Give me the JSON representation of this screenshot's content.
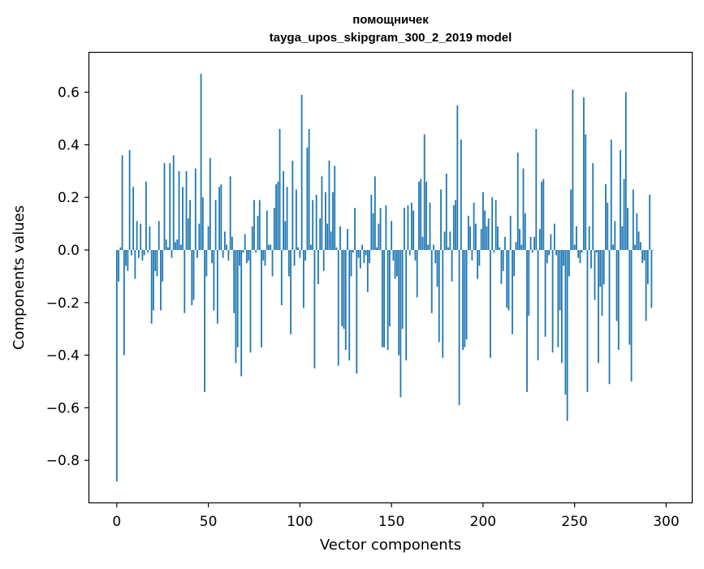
{
  "chart_data": {
    "type": "bar",
    "title": "помощничек",
    "subtitle": "tayga_upos_skipgram_300_2_2019 model",
    "xlabel": "Vector components",
    "ylabel": "Components values",
    "xlim": [
      -15,
      314
    ],
    "ylim": [
      -0.96,
      0.75
    ],
    "xticks": [
      0,
      50,
      100,
      150,
      200,
      250,
      300
    ],
    "xtick_labels": [
      "0",
      "50",
      "100",
      "150",
      "200",
      "250",
      "300"
    ],
    "yticks": [
      -0.8,
      -0.6,
      -0.4,
      -0.2,
      0.0,
      0.2,
      0.4,
      0.6
    ],
    "ytick_labels": [
      "−0.8",
      "−0.6",
      "−0.4",
      "−0.2",
      "0.0",
      "0.2",
      "0.4",
      "0.6"
    ],
    "grid": false,
    "bar_color": "#1f77b4",
    "values": [
      -0.88,
      -0.12,
      0.01,
      0.36,
      -0.4,
      -0.06,
      -0.08,
      0.38,
      -0.02,
      0.24,
      -0.11,
      0.11,
      -0.03,
      0.1,
      -0.04,
      -0.02,
      0.26,
      -0.01,
      0.09,
      -0.28,
      -0.23,
      -0.08,
      -0.1,
      0.11,
      -0.23,
      -0.12,
      0.33,
      0.04,
      0.01,
      0.33,
      -0.03,
      0.36,
      0.03,
      0.04,
      0.3,
      0.02,
      0.24,
      -0.24,
      0.3,
      0.12,
      0.19,
      -0.21,
      -0.19,
      0.31,
      -0.03,
      0.1,
      0.67,
      0.2,
      -0.54,
      -0.1,
      0.09,
      0.35,
      -0.05,
      -0.23,
      0.19,
      -0.28,
      0.24,
      0.25,
      -0.03,
      0.07,
      0.02,
      -0.04,
      0.28,
      0.05,
      -0.24,
      -0.43,
      -0.37,
      -0.06,
      -0.48,
      -0.01,
      0.06,
      -0.05,
      -0.04,
      -0.39,
      0.09,
      0.19,
      -0.01,
      0.13,
      0.19,
      -0.37,
      -0.04,
      -0.06,
      0.15,
      0.02,
      0.02,
      -0.1,
      0.16,
      0.25,
      0.26,
      0.46,
      -0.21,
      0.3,
      0.11,
      0.24,
      -0.1,
      -0.32,
      0.34,
      -0.06,
      0.23,
      0.01,
      -0.03,
      0.59,
      -0.22,
      -0.04,
      0.39,
      0.46,
      0.02,
      0.19,
      -0.45,
      0.21,
      -0.13,
      0.12,
      0.28,
      -0.08,
      0.22,
      0.1,
      0.34,
      0.07,
      0.22,
      0.32,
      0.01,
      -0.44,
      0.09,
      -0.29,
      -0.3,
      -0.38,
      0.08,
      -0.42,
      -0.1,
      -0.01,
      0.16,
      -0.47,
      -0.03,
      -0.07,
      0.02,
      -0.05,
      -0.02,
      -0.16,
      -0.05,
      0.21,
      0.14,
      0.28,
      0.01,
      0.1,
      0.16,
      -0.37,
      -0.37,
      0.17,
      -0.38,
      -0.29,
      0.11,
      -0.04,
      -0.11,
      -0.1,
      -0.4,
      -0.56,
      -0.3,
      0.16,
      -0.42,
      0.17,
      -0.02,
      0.18,
      0.15,
      -0.04,
      -0.18,
      0.26,
      0.27,
      0.05,
      0.44,
      0.26,
      0.02,
      0.18,
      -0.24,
      0.02,
      -0.05,
      -0.14,
      -0.35,
      0.23,
      -0.41,
      0.07,
      0.29,
      0.01,
      0.07,
      -0.12,
      0.17,
      0.19,
      0.55,
      -0.59,
      0.42,
      -0.38,
      -0.37,
      -0.34,
      0.13,
      0.09,
      -0.04,
      0.18,
      0.1,
      -0.11,
      -0.06,
      0.08,
      0.22,
      0.15,
      0.09,
      0.12,
      -0.41,
      0.2,
      -0.01,
      0.19,
      0.09,
      0.01,
      -0.13,
      -0.08,
      0.05,
      -0.22,
      -0.23,
      0.13,
      -0.32,
      -0.1,
      0.03,
      0.37,
      0.08,
      0.02,
      0.31,
      0.14,
      -0.54,
      -0.25,
      0.05,
      -0.01,
      0.05,
      0.46,
      -0.42,
      0.08,
      0.26,
      0.27,
      -0.33,
      -0.05,
      -0.02,
      0.06,
      -0.39,
      0.1,
      -0.02,
      -0.37,
      -0.23,
      -0.43,
      -0.06,
      -0.55,
      -0.65,
      -0.1,
      0.23,
      0.61,
      0.02,
      0.09,
      -0.03,
      -0.05,
      -0.01,
      0.58,
      0.44,
      -0.54,
      0.09,
      -0.07,
      0.33,
      -0.19,
      -0.01,
      -0.43,
      -0.14,
      -0.25,
      -0.13,
      0.25,
      0.18,
      -0.51,
      0.42,
      0.02,
      0.11,
      -0.27,
      -0.38,
      0.38,
      0.09,
      0.27,
      0.6,
      0.16,
      -0.36,
      -0.5,
      0.23,
      0.02,
      0.14,
      0.07,
      0.03,
      -0.05,
      -0.04,
      -0.27,
      -0.13,
      0.21,
      -0.22,
      0.0
    ]
  }
}
